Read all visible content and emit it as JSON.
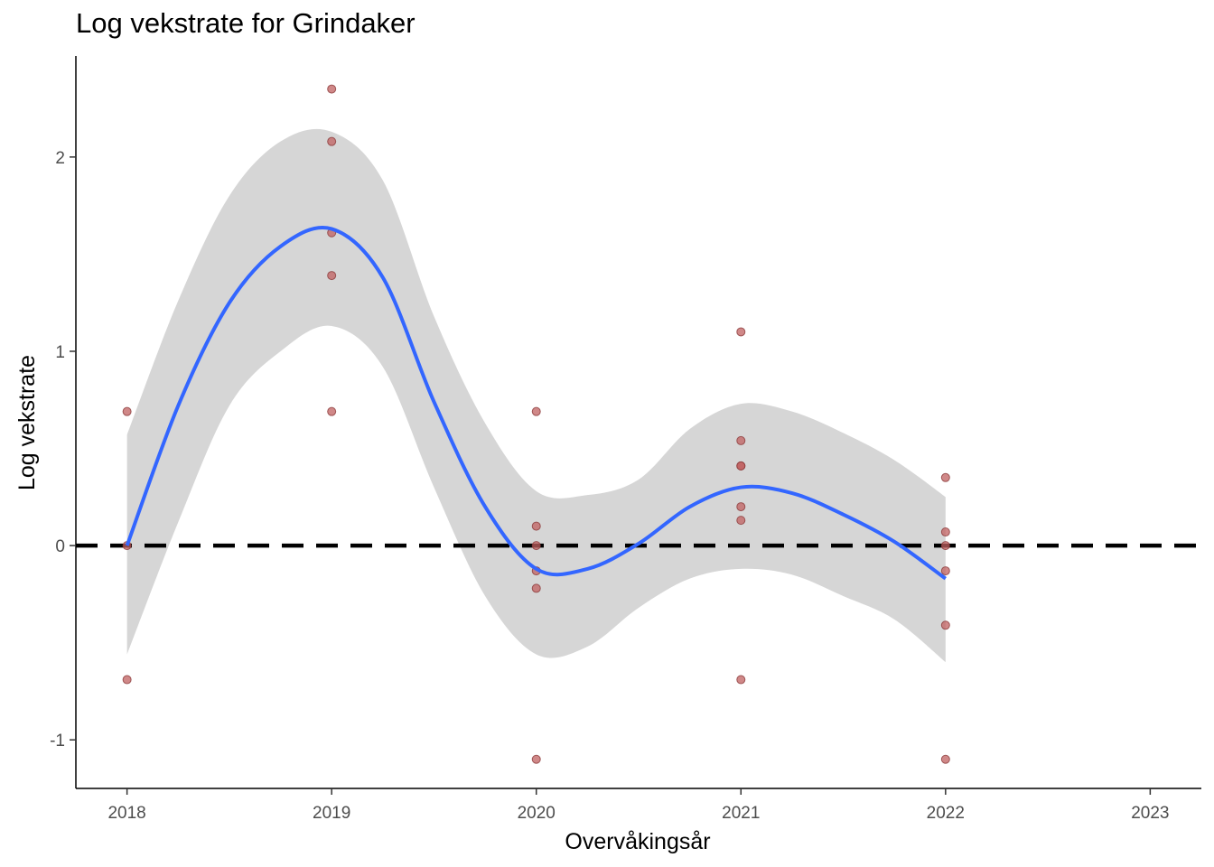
{
  "chart_data": {
    "type": "scatter",
    "title": "Log vekstrate for Grindaker",
    "xlabel": "Overvåkingsår",
    "ylabel": "Log vekstrate",
    "xlim": [
      2017.75,
      2023.25
    ],
    "ylim": [
      -1.25,
      2.52
    ],
    "x_ticks": [
      2018,
      2019,
      2020,
      2021,
      2022,
      2023
    ],
    "y_ticks": [
      -1,
      0,
      1,
      2
    ],
    "grid": false,
    "reference_line": {
      "y": 0,
      "style": "dashed",
      "color": "#000000"
    },
    "points": [
      {
        "x": 2018,
        "y": 0.69
      },
      {
        "x": 2018,
        "y": 0.0
      },
      {
        "x": 2018,
        "y": -0.69
      },
      {
        "x": 2019,
        "y": 2.35
      },
      {
        "x": 2019,
        "y": 2.08
      },
      {
        "x": 2019,
        "y": 1.61
      },
      {
        "x": 2019,
        "y": 1.39
      },
      {
        "x": 2019,
        "y": 0.69
      },
      {
        "x": 2020,
        "y": 0.69
      },
      {
        "x": 2020,
        "y": 0.1
      },
      {
        "x": 2020,
        "y": 0.0
      },
      {
        "x": 2020,
        "y": -0.13
      },
      {
        "x": 2020,
        "y": -0.22
      },
      {
        "x": 2020,
        "y": -1.1
      },
      {
        "x": 2021,
        "y": 1.1
      },
      {
        "x": 2021,
        "y": 0.54
      },
      {
        "x": 2021,
        "y": 0.41
      },
      {
        "x": 2021,
        "y": 0.41
      },
      {
        "x": 2021,
        "y": 0.2
      },
      {
        "x": 2021,
        "y": 0.13
      },
      {
        "x": 2021,
        "y": -0.69
      },
      {
        "x": 2022,
        "y": 0.35
      },
      {
        "x": 2022,
        "y": 0.07
      },
      {
        "x": 2022,
        "y": 0.0
      },
      {
        "x": 2022,
        "y": -0.13
      },
      {
        "x": 2022,
        "y": -0.41
      },
      {
        "x": 2022,
        "y": -1.1
      }
    ],
    "smooth": {
      "x": [
        2018.0,
        2018.25,
        2018.5,
        2018.75,
        2019.0,
        2019.25,
        2019.5,
        2019.75,
        2020.0,
        2020.25,
        2020.5,
        2020.75,
        2021.0,
        2021.25,
        2021.5,
        2021.75,
        2022.0
      ],
      "y": [
        0.0,
        0.72,
        1.25,
        1.54,
        1.63,
        1.38,
        0.74,
        0.2,
        -0.12,
        -0.12,
        0.01,
        0.2,
        0.3,
        0.27,
        0.16,
        0.02,
        -0.17
      ],
      "lower": [
        -0.56,
        0.12,
        0.72,
        1.0,
        1.13,
        0.92,
        0.3,
        -0.26,
        -0.56,
        -0.52,
        -0.32,
        -0.17,
        -0.12,
        -0.15,
        -0.26,
        -0.38,
        -0.6
      ],
      "upper": [
        0.57,
        1.26,
        1.8,
        2.08,
        2.13,
        1.88,
        1.18,
        0.63,
        0.28,
        0.26,
        0.34,
        0.6,
        0.73,
        0.69,
        0.58,
        0.44,
        0.25
      ],
      "line_color": "#3366ff",
      "band_color": "#d6d6d6"
    },
    "point_color": "#c06060"
  }
}
